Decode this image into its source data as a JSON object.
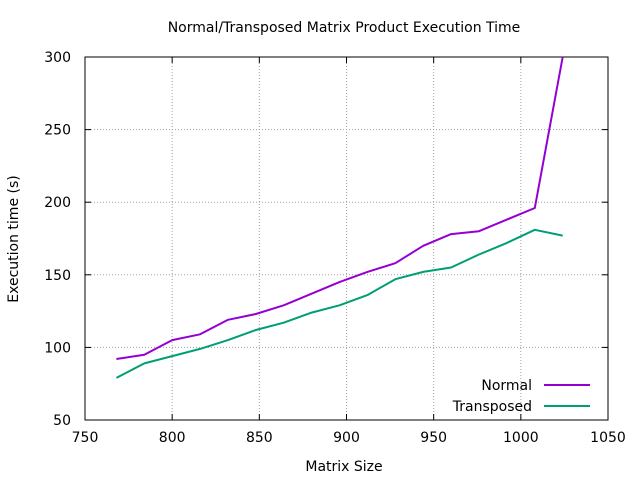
{
  "chart_data": {
    "type": "line",
    "title": "Normal/Transposed Matrix Product Execution Time",
    "xlabel": "Matrix Size",
    "ylabel": "Execution time (s)",
    "xlim": [
      750,
      1050
    ],
    "ylim": [
      50,
      300
    ],
    "xticks": [
      750,
      800,
      850,
      900,
      950,
      1000,
      1050
    ],
    "yticks": [
      50,
      100,
      150,
      200,
      250,
      300
    ],
    "grid": true,
    "legend_position": "bottom-right",
    "series": [
      {
        "name": "Normal",
        "color": "#9400D3",
        "x": [
          768,
          784,
          800,
          816,
          832,
          848,
          864,
          880,
          896,
          912,
          928,
          944,
          960,
          976,
          992,
          1008,
          1024
        ],
        "y": [
          92,
          95,
          105,
          109,
          119,
          123,
          129,
          137,
          145,
          152,
          158,
          170,
          178,
          180,
          188,
          196,
          300
        ]
      },
      {
        "name": "Transposed",
        "color": "#009E73",
        "x": [
          768,
          784,
          800,
          816,
          832,
          848,
          864,
          880,
          896,
          912,
          928,
          944,
          960,
          976,
          992,
          1008,
          1024
        ],
        "y": [
          79,
          89,
          94,
          99,
          105,
          112,
          117,
          124,
          129,
          136,
          147,
          152,
          155,
          164,
          172,
          181,
          177
        ]
      }
    ]
  }
}
